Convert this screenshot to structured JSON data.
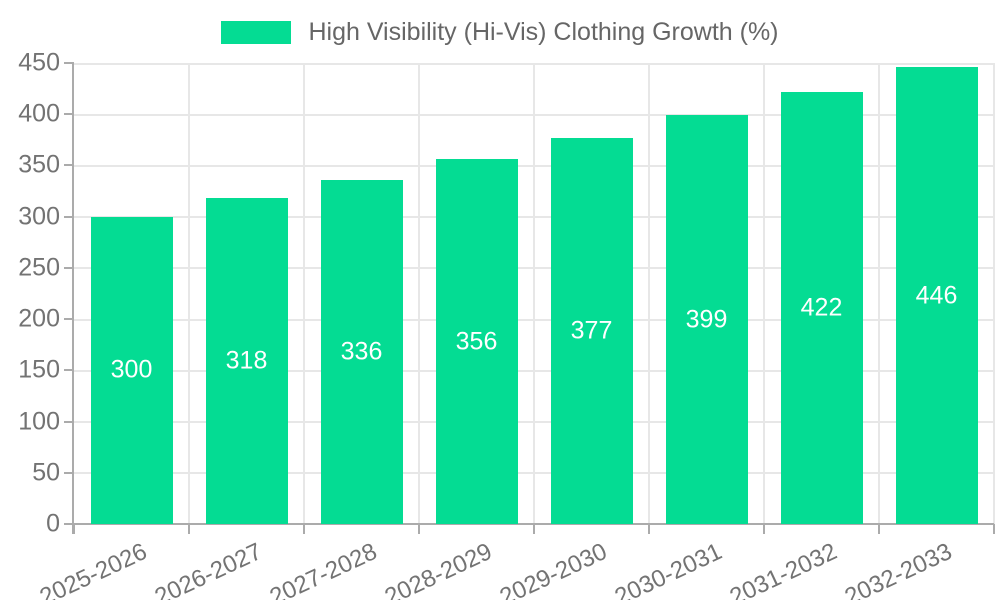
{
  "legend": {
    "label": "High Visibility (Hi-Vis) Clothing Growth (%)",
    "swatch_color": "#04dc93"
  },
  "chart_data": {
    "type": "bar",
    "title": "High Visibility (Hi-Vis) Clothing Growth (%)",
    "categories": [
      "2025-2026",
      "2026-2027",
      "2027-2028",
      "2028-2029",
      "2029-2030",
      "2030-2031",
      "2031-2032",
      "2032-2033"
    ],
    "values": [
      300,
      318,
      336,
      356,
      377,
      399,
      422,
      446
    ],
    "value_labels": [
      "300",
      "318",
      "336",
      "356",
      "377",
      "399",
      "422",
      "446"
    ],
    "ytick_labels": [
      "0",
      "50",
      "100",
      "150",
      "200",
      "250",
      "300",
      "350",
      "400",
      "450"
    ],
    "ylim": [
      0,
      450
    ],
    "ytick_step": 50,
    "xlabel": "",
    "ylabel": "",
    "grid": true,
    "legend_position": "top-center",
    "x_label_rotation_deg": -25,
    "colors": {
      "bar": "#04dc93",
      "grid": "#e7e7e7",
      "axis": "#ababab",
      "tick_label": "#737373",
      "legend_text": "#666666",
      "value_label": "#ffffff",
      "background": "#ffffff"
    }
  }
}
